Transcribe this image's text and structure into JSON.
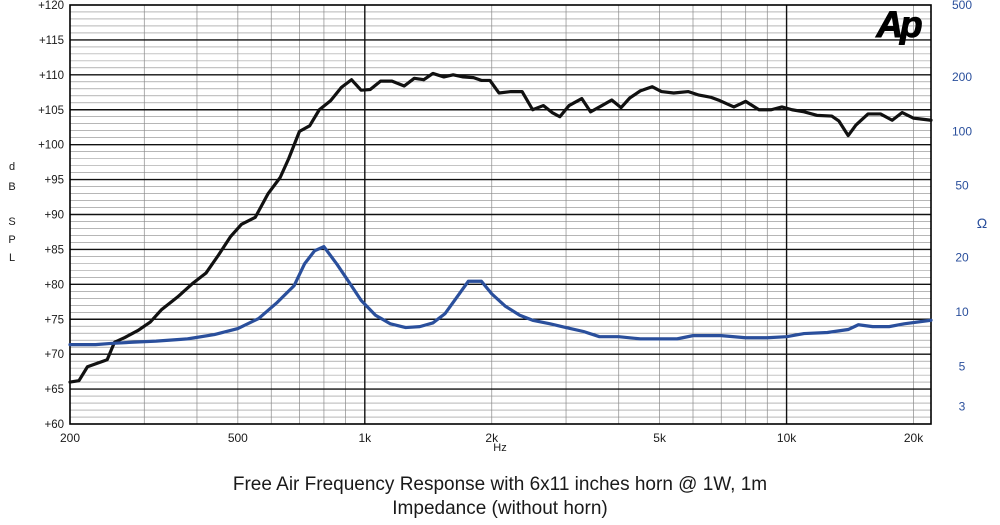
{
  "chart_data": {
    "type": "line",
    "title": "Free Air Frequency Response with 6x11 inches horn @ 1W, 1m",
    "subtitle": "Impedance (without horn)",
    "logo_text": "Ap",
    "x_axis": {
      "label": "Hz",
      "scale": "log",
      "range": [
        200,
        22000
      ],
      "tick_labels": [
        {
          "value": 200,
          "label": "200"
        },
        {
          "value": 500,
          "label": "500"
        },
        {
          "value": 1000,
          "label": "1k"
        },
        {
          "value": 2000,
          "label": "2k"
        },
        {
          "value": 5000,
          "label": "5k"
        },
        {
          "value": 10000,
          "label": "10k"
        },
        {
          "value": 20000,
          "label": "20k"
        }
      ]
    },
    "y_axis_left": {
      "label_letters": [
        "d",
        "B",
        "S",
        "P",
        "L"
      ],
      "range": [
        60,
        120
      ],
      "tick_labels": [
        {
          "value": 120,
          "label": "+120"
        },
        {
          "value": 115,
          "label": "+115"
        },
        {
          "value": 110,
          "label": "+110"
        },
        {
          "value": 105,
          "label": "+105"
        },
        {
          "value": 100,
          "label": "+100"
        },
        {
          "value": 95,
          "label": "+95"
        },
        {
          "value": 90,
          "label": "+90"
        },
        {
          "value": 85,
          "label": "+85"
        },
        {
          "value": 80,
          "label": "+80"
        },
        {
          "value": 75,
          "label": "+75"
        },
        {
          "value": 70,
          "label": "+70"
        },
        {
          "value": 65,
          "label": "+65"
        },
        {
          "value": 60,
          "label": "+60"
        }
      ]
    },
    "y_axis_right": {
      "label": "Ω",
      "scale": "log",
      "range": [
        2.4,
        500
      ],
      "tick_labels": [
        {
          "value": 500,
          "label": "500"
        },
        {
          "value": 200,
          "label": "200"
        },
        {
          "value": 100,
          "label": "100"
        },
        {
          "value": 50,
          "label": "50"
        },
        {
          "value": 20,
          "label": "20"
        },
        {
          "value": 10,
          "label": "10"
        },
        {
          "value": 5,
          "label": "5"
        },
        {
          "value": 3,
          "label": "3"
        }
      ]
    },
    "grid": true,
    "series": [
      {
        "axis": "left",
        "color": "#111111",
        "points": [
          [
            200,
            66
          ],
          [
            210,
            66.2
          ],
          [
            220,
            68.2
          ],
          [
            245,
            69.2
          ],
          [
            255,
            71.7
          ],
          [
            270,
            72.4
          ],
          [
            290,
            73.4
          ],
          [
            310,
            74.6
          ],
          [
            330,
            76.4
          ],
          [
            360,
            78.2
          ],
          [
            390,
            80.1
          ],
          [
            420,
            81.6
          ],
          [
            450,
            84.2
          ],
          [
            480,
            86.8
          ],
          [
            510,
            88.6
          ],
          [
            550,
            89.6
          ],
          [
            590,
            93.0
          ],
          [
            630,
            95.3
          ],
          [
            660,
            98.0
          ],
          [
            700,
            101.9
          ],
          [
            740,
            102.7
          ],
          [
            780,
            105.0
          ],
          [
            830,
            106.3
          ],
          [
            880,
            108.2
          ],
          [
            930,
            109.3
          ],
          [
            980,
            107.8
          ],
          [
            1030,
            107.9
          ],
          [
            1090,
            109.1
          ],
          [
            1160,
            109.1
          ],
          [
            1240,
            108.4
          ],
          [
            1310,
            109.5
          ],
          [
            1380,
            109.3
          ],
          [
            1450,
            110.2
          ],
          [
            1540,
            109.7
          ],
          [
            1620,
            110.0
          ],
          [
            1710,
            109.7
          ],
          [
            1810,
            109.6
          ],
          [
            1890,
            109.2
          ],
          [
            1980,
            109.2
          ],
          [
            2080,
            107.4
          ],
          [
            2220,
            107.6
          ],
          [
            2360,
            107.6
          ],
          [
            2500,
            105.0
          ],
          [
            2650,
            105.6
          ],
          [
            2780,
            104.6
          ],
          [
            2900,
            104.0
          ],
          [
            3050,
            105.6
          ],
          [
            3270,
            106.6
          ],
          [
            3430,
            104.7
          ],
          [
            3650,
            105.6
          ],
          [
            3850,
            106.4
          ],
          [
            4050,
            105.3
          ],
          [
            4250,
            106.7
          ],
          [
            4500,
            107.7
          ],
          [
            4800,
            108.3
          ],
          [
            5050,
            107.6
          ],
          [
            5400,
            107.4
          ],
          [
            5850,
            107.6
          ],
          [
            6200,
            107.1
          ],
          [
            6600,
            106.8
          ],
          [
            6950,
            106.3
          ],
          [
            7500,
            105.4
          ],
          [
            8000,
            106.2
          ],
          [
            8600,
            105.0
          ],
          [
            9200,
            105.0
          ],
          [
            9750,
            105.4
          ],
          [
            10300,
            105.0
          ],
          [
            11000,
            104.7
          ],
          [
            11800,
            104.2
          ],
          [
            12800,
            104.1
          ],
          [
            13300,
            103.4
          ],
          [
            14000,
            101.3
          ],
          [
            14600,
            102.8
          ],
          [
            15600,
            104.4
          ],
          [
            16700,
            104.4
          ],
          [
            17800,
            103.5
          ],
          [
            18800,
            104.6
          ],
          [
            20000,
            103.8
          ],
          [
            22000,
            103.5
          ]
        ]
      },
      {
        "axis": "right",
        "color": "#2a4f9c",
        "points": [
          [
            200,
            6.6
          ],
          [
            230,
            6.6
          ],
          [
            250,
            6.7
          ],
          [
            280,
            6.8
          ],
          [
            320,
            6.9
          ],
          [
            380,
            7.1
          ],
          [
            440,
            7.5
          ],
          [
            500,
            8.1
          ],
          [
            560,
            9.2
          ],
          [
            620,
            11.3
          ],
          [
            680,
            14.0
          ],
          [
            720,
            18.5
          ],
          [
            760,
            21.8
          ],
          [
            800,
            23.0
          ],
          [
            860,
            18.3
          ],
          [
            920,
            14.5
          ],
          [
            980,
            11.6
          ],
          [
            1060,
            9.6
          ],
          [
            1150,
            8.6
          ],
          [
            1250,
            8.2
          ],
          [
            1350,
            8.3
          ],
          [
            1450,
            8.7
          ],
          [
            1550,
            9.8
          ],
          [
            1650,
            12.0
          ],
          [
            1760,
            14.8
          ],
          [
            1890,
            14.8
          ],
          [
            2000,
            12.6
          ],
          [
            2150,
            10.8
          ],
          [
            2330,
            9.6
          ],
          [
            2500,
            9.0
          ],
          [
            2750,
            8.6
          ],
          [
            3000,
            8.2
          ],
          [
            3300,
            7.8
          ],
          [
            3600,
            7.3
          ],
          [
            4000,
            7.3
          ],
          [
            4500,
            7.1
          ],
          [
            5500,
            7.1
          ],
          [
            6000,
            7.4
          ],
          [
            7000,
            7.4
          ],
          [
            8000,
            7.2
          ],
          [
            9000,
            7.2
          ],
          [
            10000,
            7.3
          ],
          [
            11000,
            7.6
          ],
          [
            12500,
            7.7
          ],
          [
            14000,
            8.0
          ],
          [
            14800,
            8.5
          ],
          [
            16000,
            8.3
          ],
          [
            17500,
            8.3
          ],
          [
            19000,
            8.6
          ],
          [
            22000,
            9.0
          ]
        ]
      }
    ]
  }
}
